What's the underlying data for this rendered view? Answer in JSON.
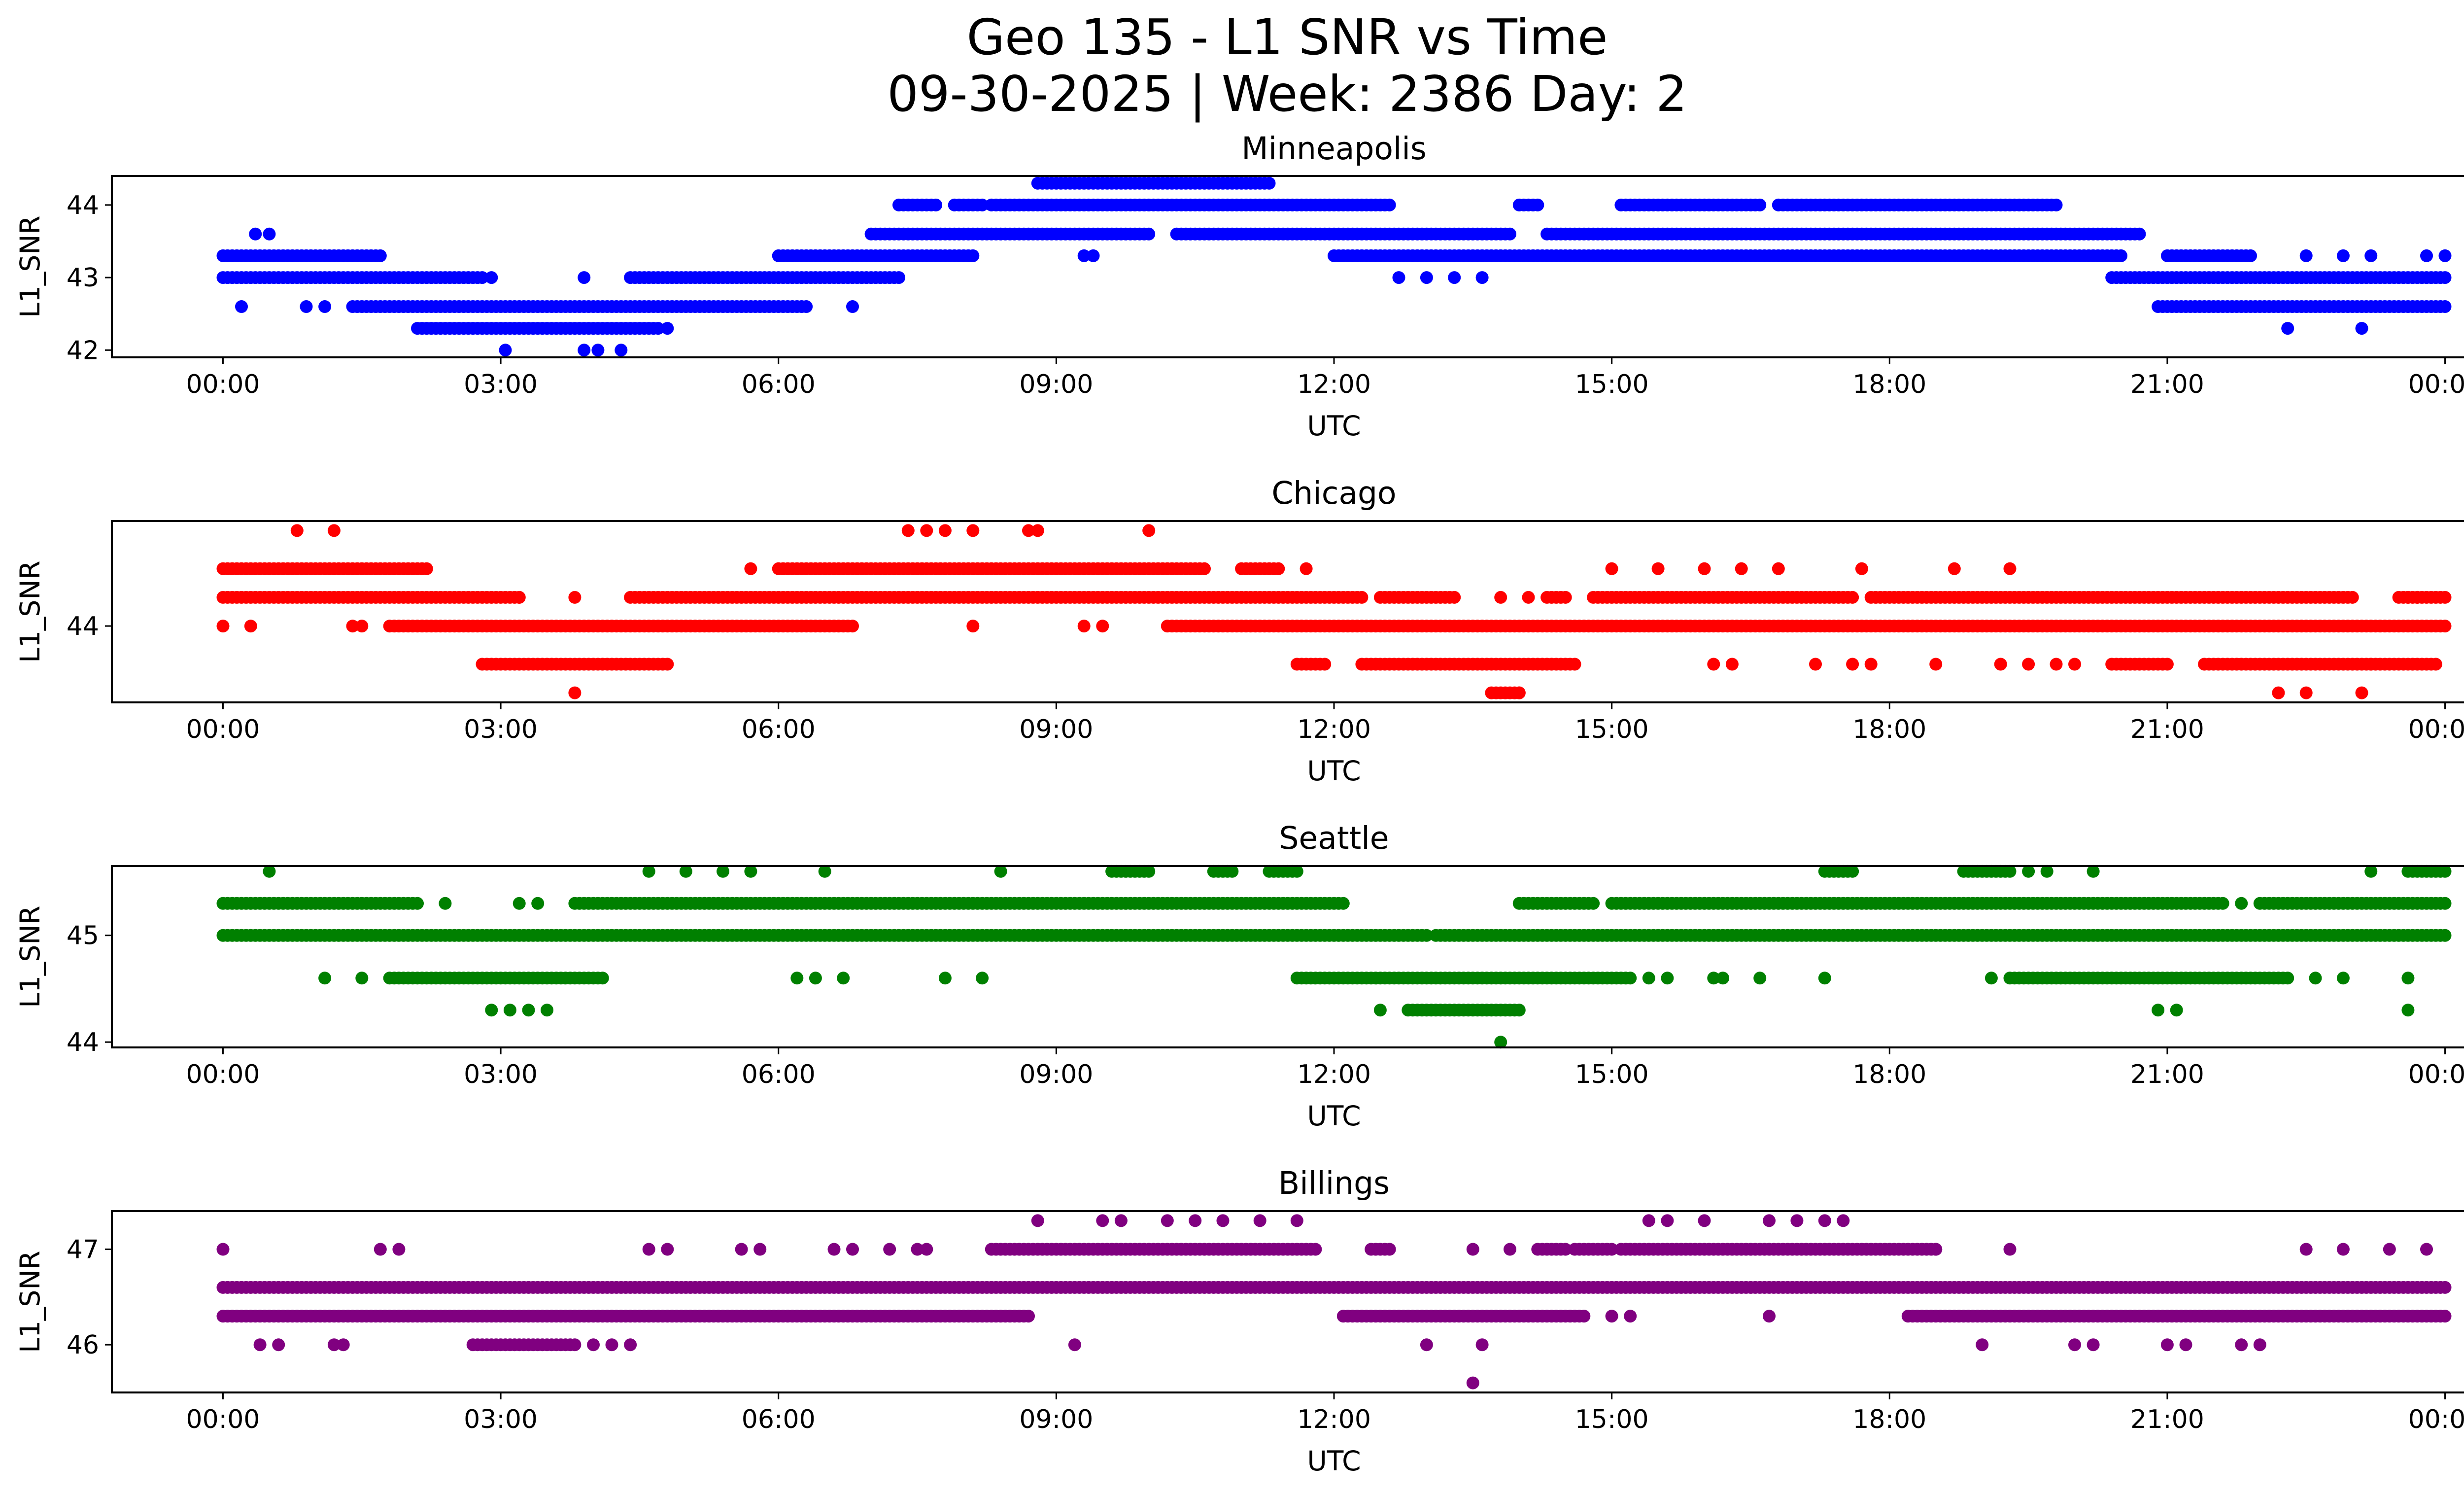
{
  "figure": {
    "title_line1": "Geo 135 - L1 SNR vs Time",
    "title_line2": "09-30-2025 | Week: 2386 Day: 2"
  },
  "chart_data": [
    {
      "type": "scatter",
      "title": "Minneapolis",
      "xlabel": "UTC",
      "ylabel": "L1_SNR",
      "color": "#0000ff",
      "x_unit": "hours UTC",
      "xlim": [
        -1.2,
        25.2
      ],
      "ylim": [
        41.9,
        44.4
      ],
      "xticks": [
        0,
        3,
        6,
        9,
        12,
        15,
        18,
        21,
        24
      ],
      "xtick_labels": [
        "00:00",
        "03:00",
        "06:00",
        "09:00",
        "12:00",
        "15:00",
        "18:00",
        "21:00",
        "00:00"
      ],
      "yticks": [
        42,
        43,
        44
      ],
      "ytick_labels": [
        "42",
        "43",
        "44"
      ],
      "bands": [
        {
          "y": 44.3,
          "segments": [
            [
              8.8,
              11.3
            ]
          ]
        },
        {
          "y": 44.0,
          "segments": [
            [
              7.3,
              7.7
            ],
            [
              7.9,
              8.2
            ],
            [
              8.3,
              12.6
            ],
            [
              14.0,
              14.2
            ],
            [
              15.1,
              16.6
            ],
            [
              16.8,
              19.8
            ]
          ]
        },
        {
          "y": 43.6,
          "segments": [
            [
              7.0,
              10.0
            ],
            [
              10.3,
              13.9
            ],
            [
              14.3,
              20.7
            ]
          ]
        },
        {
          "y": 43.3,
          "segments": [
            [
              0.0,
              1.7
            ],
            [
              6.0,
              8.1
            ],
            [
              12.0,
              20.5
            ],
            [
              21.0,
              21.9
            ]
          ]
        },
        {
          "y": 43.0,
          "segments": [
            [
              0.0,
              2.8
            ],
            [
              4.4,
              7.3
            ],
            [
              20.4,
              24.0
            ]
          ]
        },
        {
          "y": 42.6,
          "segments": [
            [
              1.4,
              6.3
            ],
            [
              20.9,
              24.0
            ]
          ]
        },
        {
          "y": 42.3,
          "segments": [
            [
              2.1,
              4.7
            ]
          ]
        }
      ],
      "points": [
        [
          0.2,
          42.6
        ],
        [
          0.35,
          43.6
        ],
        [
          0.5,
          43.6
        ],
        [
          0.9,
          42.6
        ],
        [
          1.1,
          42.6
        ],
        [
          2.9,
          43.0
        ],
        [
          3.9,
          43.0
        ],
        [
          6.8,
          42.6
        ],
        [
          4.8,
          42.3
        ],
        [
          3.05,
          42.0
        ],
        [
          3.9,
          42.0
        ],
        [
          4.05,
          42.0
        ],
        [
          4.3,
          42.0
        ],
        [
          9.3,
          43.3
        ],
        [
          9.4,
          43.3
        ],
        [
          12.7,
          43.0
        ],
        [
          13.0,
          43.0
        ],
        [
          13.3,
          43.0
        ],
        [
          13.6,
          43.0
        ],
        [
          22.3,
          42.3
        ],
        [
          23.1,
          42.3
        ],
        [
          22.5,
          43.3
        ],
        [
          22.9,
          43.3
        ],
        [
          23.2,
          43.3
        ],
        [
          23.8,
          43.3
        ],
        [
          24.0,
          43.3
        ]
      ]
    },
    {
      "type": "scatter",
      "title": "Chicago",
      "xlabel": "UTC",
      "ylabel": "L1_SNR",
      "color": "#ff0000",
      "x_unit": "hours UTC",
      "xlim": [
        -1.2,
        25.2
      ],
      "ylim": [
        43.2,
        45.1
      ],
      "xticks": [
        0,
        3,
        6,
        9,
        12,
        15,
        18,
        21,
        24
      ],
      "xtick_labels": [
        "00:00",
        "03:00",
        "06:00",
        "09:00",
        "12:00",
        "15:00",
        "18:00",
        "21:00",
        "00:00"
      ],
      "yticks": [
        44
      ],
      "ytick_labels": [
        "44"
      ],
      "bands": [
        {
          "y": 44.6,
          "segments": [
            [
              0.0,
              2.2
            ],
            [
              6.0,
              10.6
            ],
            [
              11.0,
              11.4
            ]
          ]
        },
        {
          "y": 44.3,
          "segments": [
            [
              0.0,
              3.2
            ],
            [
              4.4,
              12.3
            ],
            [
              12.5,
              13.3
            ],
            [
              14.3,
              14.5
            ],
            [
              14.8,
              17.6
            ],
            [
              17.8,
              23.0
            ],
            [
              23.5,
              24.0
            ]
          ]
        },
        {
          "y": 44.0,
          "segments": [
            [
              1.8,
              6.8
            ],
            [
              10.2,
              24.0
            ]
          ]
        },
        {
          "y": 43.6,
          "segments": [
            [
              2.8,
              4.8
            ],
            [
              11.6,
              11.9
            ],
            [
              12.3,
              14.6
            ],
            [
              20.4,
              21.0
            ],
            [
              21.4,
              23.9
            ]
          ]
        },
        {
          "y": 43.3,
          "segments": [
            [
              13.7,
              14.0
            ]
          ]
        }
      ],
      "points": [
        [
          0.0,
          44.0
        ],
        [
          0.3,
          44.0
        ],
        [
          0.8,
          45.0
        ],
        [
          1.2,
          45.0
        ],
        [
          1.4,
          44.0
        ],
        [
          1.5,
          44.0
        ],
        [
          3.2,
          44.3
        ],
        [
          3.8,
          44.3
        ],
        [
          3.8,
          43.3
        ],
        [
          5.7,
          44.6
        ],
        [
          7.4,
          45.0
        ],
        [
          7.6,
          45.0
        ],
        [
          7.8,
          45.0
        ],
        [
          8.1,
          45.0
        ],
        [
          8.7,
          45.0
        ],
        [
          8.8,
          45.0
        ],
        [
          8.1,
          44.0
        ],
        [
          9.3,
          44.0
        ],
        [
          9.5,
          44.0
        ],
        [
          10.0,
          45.0
        ],
        [
          11.7,
          44.6
        ],
        [
          13.8,
          44.3
        ],
        [
          14.1,
          44.3
        ],
        [
          14.0,
          43.3
        ],
        [
          16.1,
          43.6
        ],
        [
          16.3,
          43.6
        ],
        [
          17.2,
          43.6
        ],
        [
          17.6,
          43.6
        ],
        [
          17.8,
          43.6
        ],
        [
          18.5,
          43.6
        ],
        [
          19.2,
          43.6
        ],
        [
          19.5,
          43.6
        ],
        [
          19.8,
          43.6
        ],
        [
          20.0,
          43.6
        ],
        [
          16.8,
          44.6
        ],
        [
          16.0,
          44.6
        ],
        [
          15.0,
          44.6
        ],
        [
          15.5,
          44.6
        ],
        [
          16.4,
          44.6
        ],
        [
          17.7,
          44.6
        ],
        [
          18.7,
          44.6
        ],
        [
          19.3,
          44.6
        ],
        [
          22.2,
          43.3
        ],
        [
          22.5,
          43.3
        ],
        [
          23.1,
          43.3
        ],
        [
          23.2,
          43.6
        ],
        [
          23.7,
          44.3
        ],
        [
          23.6,
          44.3
        ]
      ]
    },
    {
      "type": "scatter",
      "title": "Seattle",
      "xlabel": "UTC",
      "ylabel": "L1_SNR",
      "color": "#008000",
      "x_unit": "hours UTC",
      "xlim": [
        -1.2,
        25.2
      ],
      "ylim": [
        43.95,
        45.65
      ],
      "xticks": [
        0,
        3,
        6,
        9,
        12,
        15,
        18,
        21,
        24
      ],
      "xtick_labels": [
        "00:00",
        "03:00",
        "06:00",
        "09:00",
        "12:00",
        "15:00",
        "18:00",
        "21:00",
        "00:00"
      ],
      "yticks": [
        44,
        45
      ],
      "ytick_labels": [
        "44",
        "45"
      ],
      "bands": [
        {
          "y": 45.6,
          "segments": [
            [
              9.6,
              10.0
            ],
            [
              10.7,
              10.9
            ],
            [
              11.3,
              11.6
            ],
            [
              17.3,
              17.6
            ],
            [
              18.8,
              19.3
            ],
            [
              23.6,
              24.0
            ]
          ]
        },
        {
          "y": 45.3,
          "segments": [
            [
              0.0,
              2.1
            ],
            [
              3.8,
              12.1
            ],
            [
              14.0,
              14.8
            ],
            [
              15.0,
              21.6
            ],
            [
              22.0,
              24.0
            ]
          ]
        },
        {
          "y": 45.0,
          "segments": [
            [
              0.0,
              13.0
            ],
            [
              13.1,
              24.0
            ]
          ]
        },
        {
          "y": 44.6,
          "segments": [
            [
              1.8,
              4.1
            ],
            [
              11.6,
              15.2
            ],
            [
              19.3,
              22.3
            ]
          ]
        },
        {
          "y": 44.3,
          "segments": [
            [
              12.8,
              14.0
            ]
          ]
        }
      ],
      "points": [
        [
          0.5,
          45.6
        ],
        [
          4.6,
          45.6
        ],
        [
          5.0,
          45.6
        ],
        [
          5.4,
          45.6
        ],
        [
          5.7,
          45.6
        ],
        [
          6.5,
          45.6
        ],
        [
          8.4,
          45.6
        ],
        [
          19.5,
          45.6
        ],
        [
          19.7,
          45.6
        ],
        [
          20.2,
          45.6
        ],
        [
          23.2,
          45.6
        ],
        [
          2.4,
          45.3
        ],
        [
          3.2,
          45.3
        ],
        [
          3.4,
          45.3
        ],
        [
          1.1,
          44.6
        ],
        [
          1.5,
          44.6
        ],
        [
          6.2,
          44.6
        ],
        [
          6.4,
          44.6
        ],
        [
          6.7,
          44.6
        ],
        [
          7.8,
          44.6
        ],
        [
          8.2,
          44.6
        ],
        [
          15.4,
          44.6
        ],
        [
          15.6,
          44.6
        ],
        [
          16.1,
          44.6
        ],
        [
          16.2,
          44.6
        ],
        [
          16.6,
          44.6
        ],
        [
          17.3,
          44.6
        ],
        [
          19.1,
          44.6
        ],
        [
          22.6,
          44.6
        ],
        [
          22.9,
          44.6
        ],
        [
          23.6,
          44.6
        ],
        [
          2.9,
          44.3
        ],
        [
          3.1,
          44.3
        ],
        [
          3.3,
          44.3
        ],
        [
          3.5,
          44.3
        ],
        [
          12.5,
          44.3
        ],
        [
          20.9,
          44.3
        ],
        [
          21.1,
          44.3
        ],
        [
          23.6,
          44.3
        ],
        [
          13.8,
          44.0
        ],
        [
          21.8,
          45.3
        ]
      ]
    },
    {
      "type": "scatter",
      "title": "Billings",
      "xlabel": "UTC",
      "ylabel": "L1_SNR",
      "color": "#800080",
      "x_unit": "hours UTC",
      "xlim": [
        -1.2,
        25.2
      ],
      "ylim": [
        45.5,
        47.4
      ],
      "xticks": [
        0,
        3,
        6,
        9,
        12,
        15,
        18,
        21,
        24
      ],
      "xtick_labels": [
        "00:00",
        "03:00",
        "06:00",
        "09:00",
        "12:00",
        "15:00",
        "18:00",
        "21:00",
        "00:00"
      ],
      "yticks": [
        46,
        47
      ],
      "ytick_labels": [
        "46",
        "47"
      ],
      "bands": [
        {
          "y": 47.0,
          "segments": [
            [
              8.3,
              11.8
            ],
            [
              12.4,
              12.6
            ],
            [
              14.2,
              14.5
            ],
            [
              14.6,
              15.0
            ],
            [
              15.1,
              18.5
            ]
          ]
        },
        {
          "y": 46.6,
          "segments": [
            [
              0.0,
              24.0
            ]
          ]
        },
        {
          "y": 46.3,
          "segments": [
            [
              0.0,
              8.7
            ],
            [
              12.1,
              14.7
            ],
            [
              18.2,
              24.0
            ]
          ]
        },
        {
          "y": 46.0,
          "segments": [
            [
              2.7,
              3.8
            ]
          ]
        }
      ],
      "points": [
        [
          0.0,
          47.0
        ],
        [
          1.7,
          47.0
        ],
        [
          1.9,
          47.0
        ],
        [
          4.6,
          47.0
        ],
        [
          4.8,
          47.0
        ],
        [
          5.6,
          47.0
        ],
        [
          5.8,
          47.0
        ],
        [
          6.6,
          47.0
        ],
        [
          6.8,
          47.0
        ],
        [
          7.2,
          47.0
        ],
        [
          7.5,
          47.0
        ],
        [
          7.6,
          47.0
        ],
        [
          13.5,
          47.0
        ],
        [
          13.9,
          47.0
        ],
        [
          18.5,
          47.0
        ],
        [
          19.3,
          47.0
        ],
        [
          22.5,
          47.0
        ],
        [
          22.9,
          47.0
        ],
        [
          23.4,
          47.0
        ],
        [
          23.8,
          47.0
        ],
        [
          8.8,
          47.3
        ],
        [
          9.5,
          47.3
        ],
        [
          9.7,
          47.3
        ],
        [
          10.2,
          47.3
        ],
        [
          10.5,
          47.3
        ],
        [
          10.8,
          47.3
        ],
        [
          11.2,
          47.3
        ],
        [
          11.6,
          47.3
        ],
        [
          15.4,
          47.3
        ],
        [
          15.6,
          47.3
        ],
        [
          16.0,
          47.3
        ],
        [
          16.7,
          47.3
        ],
        [
          17.0,
          47.3
        ],
        [
          17.3,
          47.3
        ],
        [
          17.5,
          47.3
        ],
        [
          0.4,
          46.0
        ],
        [
          0.6,
          46.0
        ],
        [
          1.2,
          46.0
        ],
        [
          1.3,
          46.0
        ],
        [
          4.0,
          46.0
        ],
        [
          4.2,
          46.0
        ],
        [
          4.4,
          46.0
        ],
        [
          9.2,
          46.0
        ],
        [
          13.0,
          46.0
        ],
        [
          13.6,
          46.0
        ],
        [
          19.0,
          46.0
        ],
        [
          20.0,
          46.0
        ],
        [
          20.2,
          46.0
        ],
        [
          21.0,
          46.0
        ],
        [
          21.2,
          46.0
        ],
        [
          21.8,
          46.0
        ],
        [
          22.0,
          46.0
        ],
        [
          13.5,
          45.6
        ],
        [
          16.7,
          46.3
        ],
        [
          15.0,
          46.3
        ],
        [
          15.2,
          46.3
        ]
      ]
    }
  ]
}
